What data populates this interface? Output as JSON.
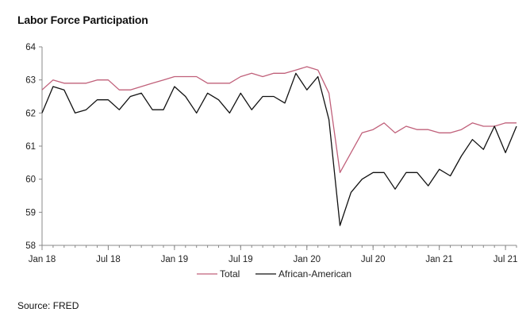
{
  "title": "Labor Force Participation",
  "source": "Source: FRED",
  "colors": {
    "total": "#c0607a",
    "african_american": "#111111",
    "axis": "#888888"
  },
  "chart_data": {
    "type": "line",
    "title": "Labor Force Participation",
    "xlabel": "",
    "ylabel": "",
    "ylim": [
      58,
      64
    ],
    "yticks": [
      "58",
      "59",
      "60",
      "61",
      "62",
      "63",
      "64"
    ],
    "xticks": [
      {
        "label": "Jan 18",
        "date": "2018-01"
      },
      {
        "label": "Jul 18",
        "date": "2018-07"
      },
      {
        "label": "Jan 19",
        "date": "2019-01"
      },
      {
        "label": "Jul 19",
        "date": "2019-07"
      },
      {
        "label": "Jan 20",
        "date": "2020-01"
      },
      {
        "label": "Jul 20",
        "date": "2020-07"
      },
      {
        "label": "Jan 21",
        "date": "2021-01"
      },
      {
        "label": "Jul 21",
        "date": "2021-07"
      }
    ],
    "x": [
      "2018-01",
      "2018-02",
      "2018-03",
      "2018-04",
      "2018-05",
      "2018-06",
      "2018-07",
      "2018-08",
      "2018-09",
      "2018-10",
      "2018-11",
      "2018-12",
      "2019-01",
      "2019-02",
      "2019-03",
      "2019-04",
      "2019-05",
      "2019-06",
      "2019-07",
      "2019-08",
      "2019-09",
      "2019-10",
      "2019-11",
      "2019-12",
      "2020-01",
      "2020-02",
      "2020-03",
      "2020-04",
      "2020-05",
      "2020-06",
      "2020-07",
      "2020-08",
      "2020-09",
      "2020-10",
      "2020-11",
      "2020-12",
      "2021-01",
      "2021-02",
      "2021-03",
      "2021-04",
      "2021-05",
      "2021-06",
      "2021-07",
      "2021-08"
    ],
    "grid": false,
    "legend_position": "bottom",
    "series": [
      {
        "name": "Total",
        "color": "#c0607a",
        "values": [
          62.7,
          63.0,
          62.9,
          62.9,
          62.9,
          63.0,
          63.0,
          62.7,
          62.7,
          62.8,
          62.9,
          63.0,
          63.1,
          63.1,
          63.1,
          62.9,
          62.9,
          62.9,
          63.1,
          63.2,
          63.1,
          63.2,
          63.2,
          63.3,
          63.4,
          63.3,
          62.6,
          60.2,
          60.8,
          61.4,
          61.5,
          61.7,
          61.4,
          61.6,
          61.5,
          61.5,
          61.4,
          61.4,
          61.5,
          61.7,
          61.6,
          61.6,
          61.7,
          61.7
        ]
      },
      {
        "name": "African-American",
        "color": "#111111",
        "values": [
          62.0,
          62.8,
          62.7,
          62.0,
          62.1,
          62.4,
          62.4,
          62.1,
          62.5,
          62.6,
          62.1,
          62.1,
          62.8,
          62.5,
          62.0,
          62.6,
          62.4,
          62.0,
          62.6,
          62.1,
          62.5,
          62.5,
          62.3,
          63.2,
          62.7,
          63.1,
          61.8,
          58.6,
          59.6,
          60.0,
          60.2,
          60.2,
          59.7,
          60.2,
          60.2,
          59.8,
          60.3,
          60.1,
          60.7,
          61.2,
          60.9,
          61.6,
          60.8,
          61.6
        ]
      }
    ]
  }
}
